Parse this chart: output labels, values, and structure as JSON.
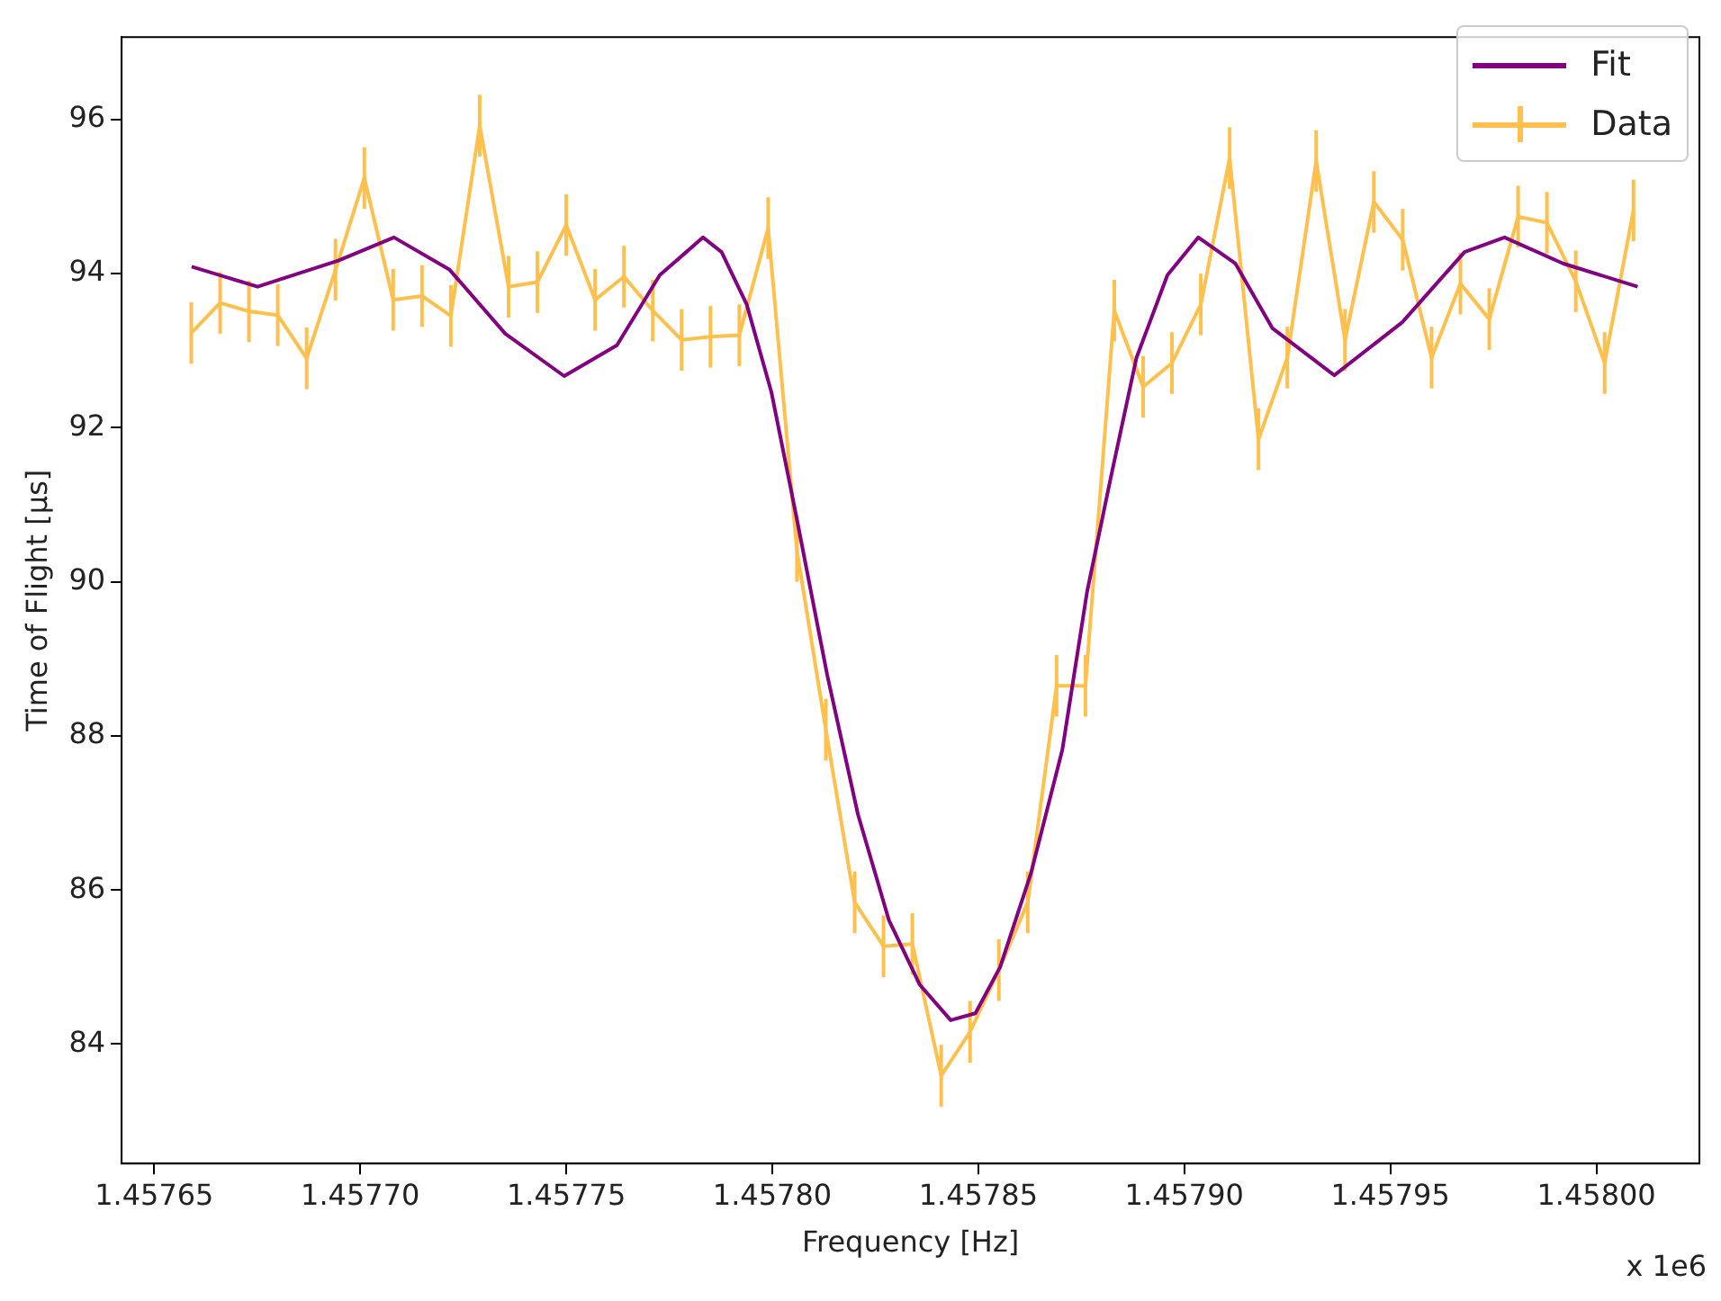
{
  "chart_data": {
    "type": "line",
    "xlabel": "Frequency [Hz]",
    "ylabel": "Time of Flight [μs]",
    "xlim": [
      1.4576421,
      1.458025
    ],
    "ylim": [
      82.45,
      97.07
    ],
    "xticks": [
      1.45765,
      {
        "value": 1.4577,
        "label": "1.45770"
      },
      1.45775,
      {
        "value": 1.4578,
        "label": "1.45780"
      },
      1.45785,
      {
        "value": 1.4579,
        "label": "1.45790"
      },
      1.45795,
      {
        "value": 1.458,
        "label": "1.45800"
      }
    ],
    "yticks": [
      84,
      86,
      88,
      90,
      92,
      94,
      96
    ],
    "legend": "top right",
    "marker": "none",
    "annotations": [
      "x 1e6"
    ],
    "series": [
      {
        "name": "Fit",
        "color": "#800080",
        "x": [
          1.4576591,
          1.4576751,
          1.4576947,
          1.4577082,
          1.4577217,
          1.4577352,
          1.4577495,
          1.4577623,
          1.4577727,
          1.4577832,
          1.4577877,
          1.4577938,
          1.4577998,
          1.4578058,
          1.4578133,
          1.4578208,
          1.4578283,
          1.4578358,
          1.4578433,
          1.4578493,
          1.4578553,
          1.4578628,
          1.4578704,
          1.4578764,
          1.4578823,
          1.4578884,
          1.4578959,
          1.4579034,
          1.4579124,
          1.4579214,
          1.4579364,
          1.4579529,
          1.457968,
          1.4579777,
          1.457992,
          1.45801
        ],
        "values": [
          94.09,
          93.83,
          94.17,
          94.47,
          94.05,
          93.22,
          92.67,
          93.07,
          93.98,
          94.47,
          94.28,
          93.6,
          92.46,
          90.86,
          88.8,
          86.98,
          85.61,
          84.77,
          84.31,
          84.4,
          85.0,
          86.22,
          87.82,
          89.87,
          91.39,
          92.91,
          93.98,
          94.47,
          94.13,
          93.29,
          92.68,
          93.37,
          94.28,
          94.47,
          94.13,
          93.83
        ]
      },
      {
        "name": "Data",
        "color": "#ffc04d",
        "x": [
          1.457659,
          1.457666,
          1.457673,
          1.45768,
          1.457687,
          1.457694,
          1.457701,
          1.457708,
          1.457715,
          1.457722,
          1.457729,
          1.457736,
          1.457743,
          1.45775,
          1.457757,
          1.457764,
          1.457771,
          1.457778,
          1.457785,
          1.457792,
          1.457799,
          1.457806,
          1.457813,
          1.45782,
          1.457827,
          1.457834,
          1.457841,
          1.457848,
          1.457855,
          1.457862,
          1.457869,
          1.457876,
          1.457883,
          1.45789,
          1.457897,
          1.457904,
          1.457911,
          1.457918,
          1.457925,
          1.457932,
          1.457939,
          1.457946,
          1.457953,
          1.45796,
          1.457967,
          1.457974,
          1.457981,
          1.457988,
          1.457995,
          1.458002,
          1.458009
        ],
        "values": [
          93.23,
          93.62,
          93.51,
          93.46,
          92.9,
          94.05,
          95.24,
          93.66,
          93.71,
          93.45,
          95.92,
          93.83,
          93.89,
          94.63,
          93.66,
          93.96,
          93.52,
          93.14,
          93.18,
          93.2,
          94.59,
          90.4,
          88.08,
          85.84,
          85.27,
          85.3,
          83.59,
          84.16,
          84.96,
          85.84,
          88.65,
          88.65,
          93.52,
          92.53,
          92.84,
          93.6,
          95.5,
          91.85,
          92.91,
          95.46,
          93.14,
          94.93,
          94.44,
          92.91,
          93.87,
          93.41,
          94.74,
          94.66,
          93.9,
          92.84,
          94.82
        ],
        "errors": [
          0.4,
          0.4,
          0.4,
          0.4,
          0.4,
          0.4,
          0.4,
          0.4,
          0.4,
          0.4,
          0.4,
          0.4,
          0.4,
          0.4,
          0.4,
          0.4,
          0.4,
          0.4,
          0.4,
          0.4,
          0.4,
          0.4,
          0.4,
          0.4,
          0.4,
          0.4,
          0.4,
          0.4,
          0.4,
          0.4,
          0.4,
          0.4,
          0.4,
          0.4,
          0.4,
          0.4,
          0.4,
          0.4,
          0.4,
          0.4,
          0.4,
          0.4,
          0.4,
          0.4,
          0.4,
          0.4,
          0.4,
          0.4,
          0.4,
          0.4,
          0.4
        ]
      }
    ]
  }
}
